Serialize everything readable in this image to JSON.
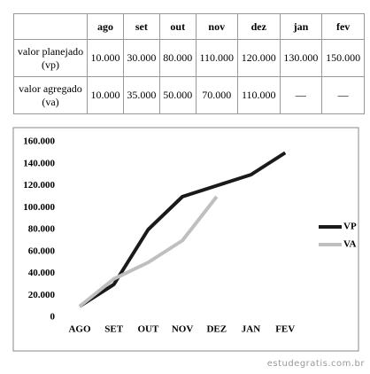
{
  "table": {
    "header": [
      "ago",
      "set",
      "out",
      "nov",
      "dez",
      "jan",
      "fev"
    ],
    "rows": [
      [
        "valor planejado (vp)",
        "10.000",
        "30.000",
        "80.000",
        "110.000",
        "120.000",
        "130.000",
        "150.000"
      ],
      [
        "valor agregado (va)",
        "10.000",
        "35.000",
        "50.000",
        "70.000",
        "110.000",
        "—",
        "—"
      ]
    ]
  },
  "chart_data": {
    "type": "line",
    "categories": [
      "AGO",
      "SET",
      "OUT",
      "NOV",
      "DEZ",
      "JAN",
      "FEV"
    ],
    "series": [
      {
        "name": "VP",
        "color": "#1a1a1a",
        "values": [
          10000,
          30000,
          80000,
          110000,
          120000,
          130000,
          150000
        ]
      },
      {
        "name": "VA",
        "color": "#bfbfbf",
        "values": [
          10000,
          35000,
          50000,
          70000,
          110000,
          null,
          null
        ]
      }
    ],
    "ylim": [
      0,
      160000
    ],
    "yticks": [
      0,
      {
        "value": 20000,
        "label": "20.000"
      },
      {
        "value": 40000,
        "label": "40.000"
      },
      {
        "value": 60000,
        "label": "60.000"
      },
      {
        "value": 80000,
        "label": "80.000"
      },
      {
        "value": 100000,
        "label": "100.000"
      },
      {
        "value": 120000,
        "label": "120.000"
      },
      {
        "value": 140000,
        "label": "140.000"
      },
      {
        "value": 160000,
        "label": "160.000"
      }
    ],
    "legend": "right"
  },
  "watermark": "estudegratis.com.br"
}
